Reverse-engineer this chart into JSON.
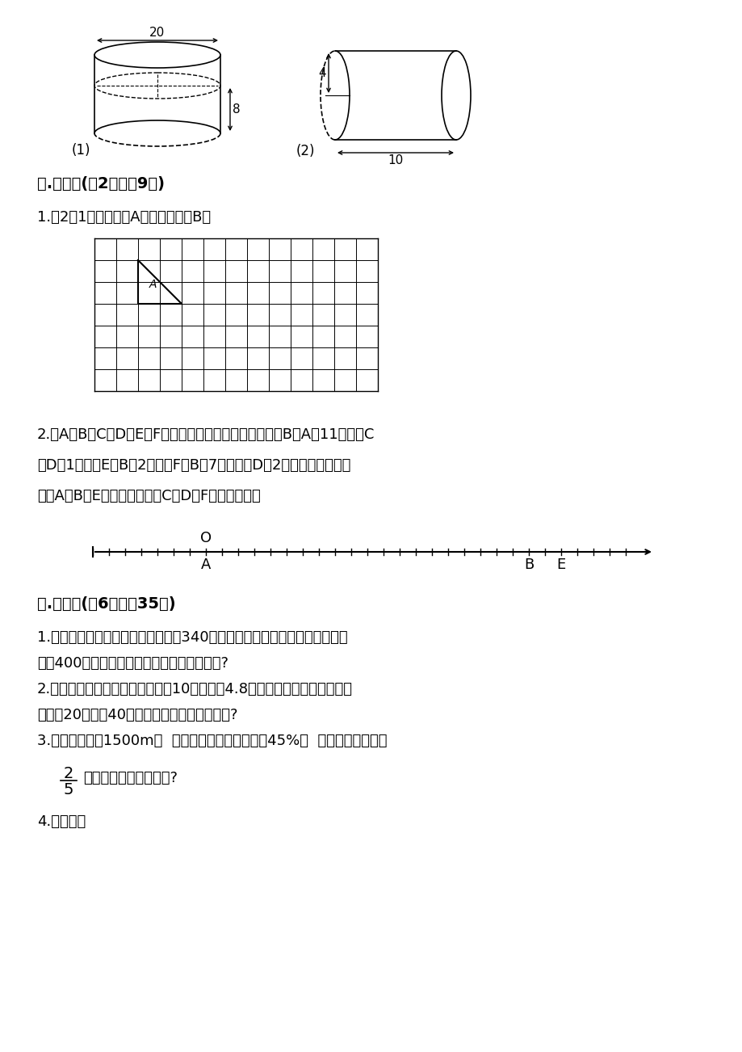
{
  "bg_color": "#ffffff",
  "section5_title": "五.作图题(共2题，共9分)",
  "section6_title": "六.解答题(共6题，共35分)",
  "q1_text": "1.按2：1画出三角形A放大后的图形B。",
  "q2_text_lines": [
    "2.有A、B、C、D、E、F六个小孩比身高，比的结果是：B比A高11厘米，C",
    "比D矮1厘米，E比B高2厘米，F比B矮7厘米，比D矮2厘米，在一条数轴",
    "上，A、B、E已标出，请你将C、D、F也标在图上。"
  ],
  "sol_lines": [
    "1.新华书店打折出售图书，张老师用340元买了一套《中国四大名著》，而原",
    "价是400元。这套《中国四大名著》打了几折?",
    "2.有一个圆锥形沙堆，底面半径是10米，高是4.8米，把这些沙子均匀地铺在",
    "一条宽20米，厚40厘米的通道上，可以铺多长?",
    "3.一条公路全长1500m，  修路队第一天修了全长的45%，  第二天修了全长的"
  ],
  "fraction_num": "2",
  "fraction_den": "5",
  "fraction_suffix": "。还剩下多少米没有修?",
  "sol_q4": "4.解答题。",
  "cyl1_label": "(1)",
  "cyl1_dim20": "20",
  "cyl1_dim8": "8",
  "cyl2_label": "(2)",
  "cyl2_dim4": "4",
  "cyl2_dim10": "10",
  "grid_rows": 7,
  "grid_cols": 13,
  "numberline_label_O": "O",
  "numberline_label_A": "A",
  "numberline_label_B": "B",
  "numberline_label_E": "E"
}
